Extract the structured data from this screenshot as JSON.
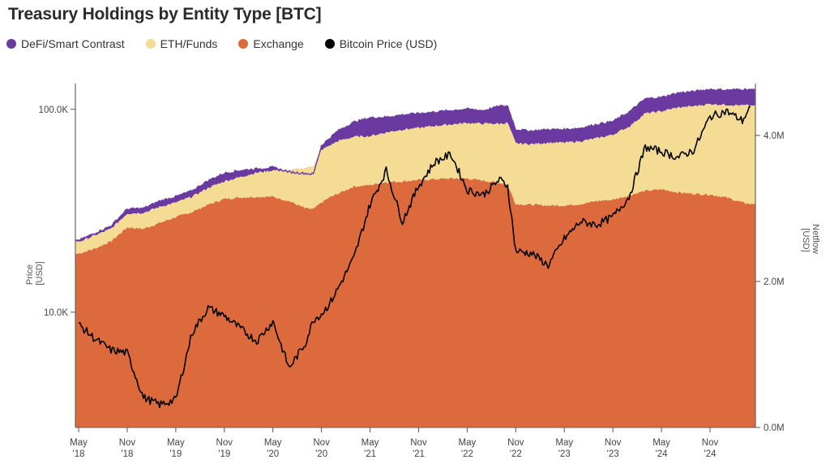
{
  "chart_data": {
    "type": "area",
    "title": "Treasury Holdings by Entity Type [BTC]",
    "legend_position": "top-left",
    "legend": [
      {
        "label": "DeFi/Smart Contrast",
        "color": "#6a3aa0"
      },
      {
        "label": "ETH/Funds",
        "color": "#f5dc94"
      },
      {
        "label": "Exchange",
        "color": "#dc6a3c"
      },
      {
        "label": "Bitcoin Price (USD)",
        "color": "#000000"
      }
    ],
    "y_left": {
      "label": "Price\n[USD]",
      "label_lines": [
        "Price",
        "[USD]"
      ],
      "scale": "log",
      "ticks": [
        10000,
        100000
      ],
      "tick_labels": [
        "10.0K",
        "100.0K"
      ],
      "range": [
        2700,
        134000
      ]
    },
    "y_right": {
      "label": "Netflow\n[USD]",
      "label_lines": [
        "Netflow",
        "[USD]"
      ],
      "scale": "linear",
      "ticks": [
        0,
        2000000,
        4000000
      ],
      "tick_labels": [
        "0.0M",
        "2.0M",
        "4.0M"
      ],
      "range": [
        0,
        4710000
      ]
    },
    "x_axis": {
      "start": "2018-05",
      "end": "2025-04",
      "tick_labels": [
        [
          "May",
          "'18"
        ],
        [
          "Nov",
          "'18"
        ],
        [
          "May",
          "'19"
        ],
        [
          "Nov",
          "'19"
        ],
        [
          "May",
          "'20"
        ],
        [
          "Nov",
          "'20"
        ],
        [
          "May",
          "'21"
        ],
        [
          "Nov",
          "'21"
        ],
        [
          "May",
          "'22"
        ],
        [
          "Nov",
          "'22"
        ],
        [
          "May",
          "'23"
        ],
        [
          "Nov",
          "'23"
        ],
        [
          "May",
          "'24"
        ],
        [
          "Nov",
          "'24"
        ]
      ]
    },
    "months_from_start": [
      0,
      2,
      4,
      6,
      8,
      10,
      12,
      14,
      16,
      18,
      20,
      22,
      24,
      26,
      28,
      29,
      30,
      31,
      32,
      34,
      36,
      38,
      40,
      42,
      44,
      46,
      48,
      50,
      52,
      53,
      54,
      56,
      58,
      60,
      62,
      64,
      66,
      68,
      70,
      72,
      74,
      76,
      78,
      80,
      82,
      83
    ],
    "series": [
      {
        "name": "Exchange",
        "unit": "BTC (right axis)",
        "cumulative_top": [
          2.38,
          2.45,
          2.55,
          2.74,
          2.72,
          2.8,
          2.88,
          2.95,
          3.05,
          3.13,
          3.15,
          3.16,
          3.16,
          3.1,
          3.0,
          2.99,
          3.08,
          3.15,
          3.2,
          3.3,
          3.32,
          3.36,
          3.37,
          3.39,
          3.4,
          3.41,
          3.41,
          3.38,
          3.35,
          3.32,
          3.06,
          3.05,
          3.04,
          3.04,
          3.06,
          3.1,
          3.12,
          3.18,
          3.24,
          3.26,
          3.22,
          3.2,
          3.19,
          3.15,
          3.08,
          3.06
        ]
      },
      {
        "name": "ETH/Funds",
        "unit": "BTC (right axis)",
        "cumulative_top": [
          2.54,
          2.63,
          2.72,
          2.93,
          2.94,
          3.02,
          3.08,
          3.16,
          3.28,
          3.37,
          3.43,
          3.49,
          3.52,
          3.52,
          3.55,
          3.58,
          3.8,
          3.86,
          3.92,
          3.98,
          3.99,
          4.04,
          4.08,
          4.1,
          4.13,
          4.15,
          4.17,
          4.16,
          4.16,
          4.17,
          3.89,
          3.88,
          3.9,
          3.9,
          3.92,
          3.96,
          4.01,
          4.12,
          4.3,
          4.33,
          4.38,
          4.4,
          4.43,
          4.42,
          4.41,
          4.41
        ]
      },
      {
        "name": "DeFi/Smart Contrast",
        "unit": "BTC (right axis)",
        "cumulative_top": [
          2.56,
          2.66,
          2.76,
          2.99,
          3.0,
          3.1,
          3.16,
          3.24,
          3.38,
          3.48,
          3.52,
          3.54,
          3.56,
          3.5,
          3.48,
          3.47,
          3.86,
          3.96,
          4.06,
          4.18,
          4.24,
          4.25,
          4.28,
          4.3,
          4.32,
          4.34,
          4.36,
          4.34,
          4.4,
          4.4,
          4.08,
          4.06,
          4.08,
          4.08,
          4.1,
          4.15,
          4.19,
          4.32,
          4.5,
          4.52,
          4.58,
          4.6,
          4.63,
          4.62,
          4.63,
          4.63
        ]
      },
      {
        "name": "Bitcoin Price (USD)",
        "unit": "USD (left axis)",
        "values": [
          8700,
          7400,
          6500,
          6300,
          3800,
          3500,
          3700,
          7900,
          10500,
          9600,
          8300,
          7200,
          9000,
          5300,
          7000,
          9200,
          9800,
          11000,
          13000,
          18500,
          34000,
          50000,
          28000,
          42000,
          55000,
          60000,
          40000,
          38000,
          45000,
          42000,
          20000,
          19500,
          17000,
          23000,
          28000,
          27000,
          29500,
          37000,
          65000,
          62000,
          58000,
          63000,
          92000,
          98000,
          88000,
          103000
        ]
      }
    ]
  }
}
